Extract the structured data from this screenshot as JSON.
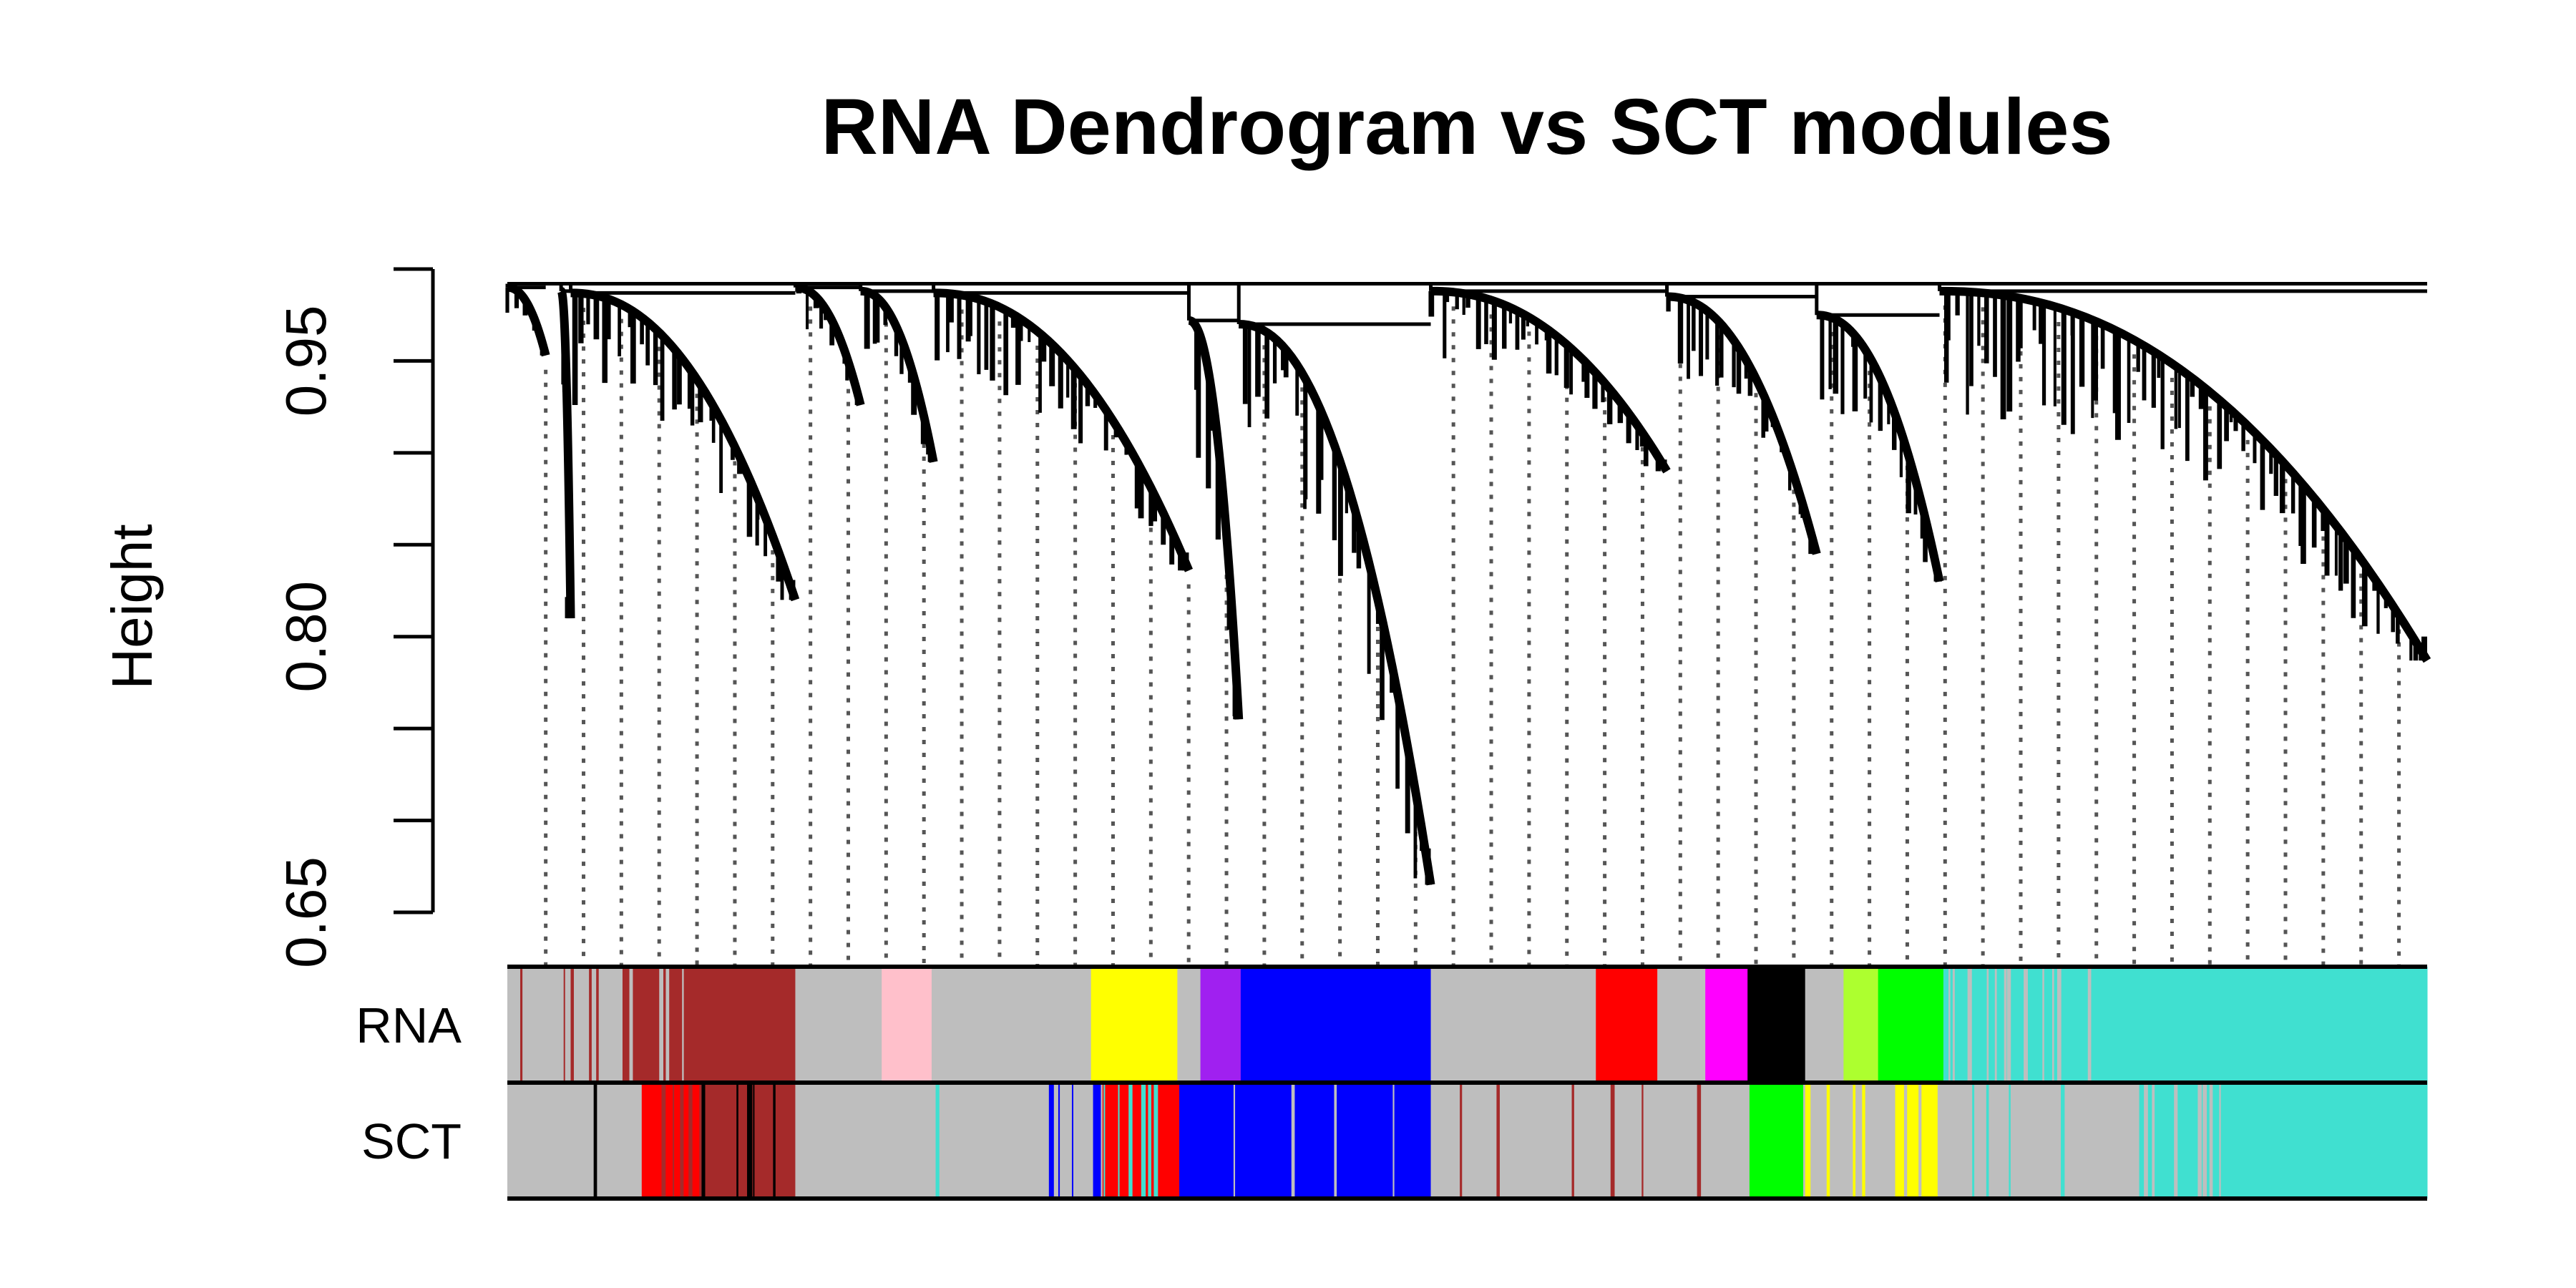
{
  "chart_data": {
    "type": "dendrogram",
    "title": "RNA Dendrogram vs SCT modules",
    "xlabel": "",
    "ylabel": "Height",
    "ylim": [
      0.65,
      1.0
    ],
    "y_ticks": [
      0.65,
      0.7,
      0.75,
      0.8,
      0.85,
      0.9,
      0.95,
      1.0
    ],
    "y_tick_labels": [
      "0.65",
      "",
      "",
      "0.80",
      "",
      "",
      "0.95",
      ""
    ],
    "root_height": 0.992,
    "clusters": [
      {
        "start": 0.0,
        "end": 0.02,
        "top": 0.99,
        "bottom": 0.953
      },
      {
        "start": 0.028,
        "end": 0.033,
        "top": 0.988,
        "bottom": 0.81
      },
      {
        "start": 0.033,
        "end": 0.15,
        "top": 0.987,
        "bottom": 0.82
      },
      {
        "start": 0.15,
        "end": 0.184,
        "top": 0.99,
        "bottom": 0.926
      },
      {
        "start": 0.184,
        "end": 0.222,
        "top": 0.988,
        "bottom": 0.895
      },
      {
        "start": 0.222,
        "end": 0.355,
        "top": 0.987,
        "bottom": 0.836
      },
      {
        "start": 0.355,
        "end": 0.381,
        "top": 0.972,
        "bottom": 0.755
      },
      {
        "start": 0.381,
        "end": 0.481,
        "top": 0.97,
        "bottom": 0.665
      },
      {
        "start": 0.481,
        "end": 0.604,
        "top": 0.988,
        "bottom": 0.89
      },
      {
        "start": 0.604,
        "end": 0.682,
        "top": 0.985,
        "bottom": 0.845
      },
      {
        "start": 0.682,
        "end": 0.746,
        "top": 0.975,
        "bottom": 0.83
      },
      {
        "start": 0.746,
        "end": 1.0,
        "top": 0.988,
        "bottom": 0.787
      }
    ],
    "color_rows": [
      {
        "label": "RNA",
        "segments": [
          {
            "start": 0.0,
            "end": 0.15,
            "color": "#bebebe",
            "mix": "#a52a2a",
            "density": 0.15
          },
          {
            "start": 0.06,
            "end": 0.093,
            "color": "#a52a2a",
            "mix": "#bebebe",
            "density": 0.3
          },
          {
            "start": 0.093,
            "end": 0.15,
            "color": "#a52a2a"
          },
          {
            "start": 0.15,
            "end": 0.195,
            "color": "#bebebe"
          },
          {
            "start": 0.195,
            "end": 0.221,
            "color": "#ffc0cb"
          },
          {
            "start": 0.221,
            "end": 0.304,
            "color": "#bebebe"
          },
          {
            "start": 0.304,
            "end": 0.349,
            "color": "#ffff00"
          },
          {
            "start": 0.349,
            "end": 0.361,
            "color": "#bebebe"
          },
          {
            "start": 0.361,
            "end": 0.382,
            "color": "#a020f0"
          },
          {
            "start": 0.382,
            "end": 0.481,
            "color": "#0000ff"
          },
          {
            "start": 0.481,
            "end": 0.567,
            "color": "#bebebe"
          },
          {
            "start": 0.567,
            "end": 0.599,
            "color": "#ff0000"
          },
          {
            "start": 0.599,
            "end": 0.624,
            "color": "#bebebe"
          },
          {
            "start": 0.624,
            "end": 0.646,
            "color": "#ff00ff"
          },
          {
            "start": 0.646,
            "end": 0.676,
            "color": "#000000"
          },
          {
            "start": 0.676,
            "end": 0.696,
            "color": "#bebebe"
          },
          {
            "start": 0.696,
            "end": 0.714,
            "color": "#adff2f"
          },
          {
            "start": 0.714,
            "end": 0.748,
            "color": "#00ff00"
          },
          {
            "start": 0.748,
            "end": 0.83,
            "color": "#40e0d0",
            "mix": "#bebebe",
            "density": 0.35
          },
          {
            "start": 0.83,
            "end": 1.0,
            "color": "#40e0d0"
          }
        ]
      },
      {
        "label": "SCT",
        "segments": [
          {
            "start": 0.0,
            "end": 0.07,
            "color": "#bebebe",
            "mix": "#000000",
            "density": 0.03
          },
          {
            "start": 0.07,
            "end": 0.1,
            "color": "#ff0000",
            "mix": "#a52a2a",
            "density": 0.4
          },
          {
            "start": 0.1,
            "end": 0.15,
            "color": "#a52a2a",
            "mix": "#000000",
            "density": 0.35
          },
          {
            "start": 0.15,
            "end": 0.28,
            "color": "#bebebe",
            "mix": "#40e0d0",
            "density": 0.02
          },
          {
            "start": 0.28,
            "end": 0.35,
            "color": "#bebebe",
            "mix": "#0000ff",
            "density": 0.45
          },
          {
            "start": 0.31,
            "end": 0.35,
            "color": "#ff0000",
            "mix": "#40e0d0",
            "density": 0.4
          },
          {
            "start": 0.35,
            "end": 0.481,
            "color": "#0000ff",
            "mix": "#bebebe",
            "density": 0.06
          },
          {
            "start": 0.481,
            "end": 0.647,
            "color": "#bebebe",
            "mix": "#a52a2a",
            "density": 0.08
          },
          {
            "start": 0.647,
            "end": 0.675,
            "color": "#00ff00"
          },
          {
            "start": 0.675,
            "end": 0.725,
            "color": "#bebebe",
            "mix": "#ffff00",
            "density": 0.4
          },
          {
            "start": 0.725,
            "end": 0.745,
            "color": "#ffff00",
            "mix": "#bebebe",
            "density": 0.2
          },
          {
            "start": 0.745,
            "end": 0.85,
            "color": "#bebebe",
            "mix": "#40e0d0",
            "density": 0.08
          },
          {
            "start": 0.85,
            "end": 0.9,
            "color": "#40e0d0",
            "mix": "#bebebe",
            "density": 0.3
          },
          {
            "start": 0.9,
            "end": 1.0,
            "color": "#40e0d0"
          }
        ]
      }
    ]
  }
}
